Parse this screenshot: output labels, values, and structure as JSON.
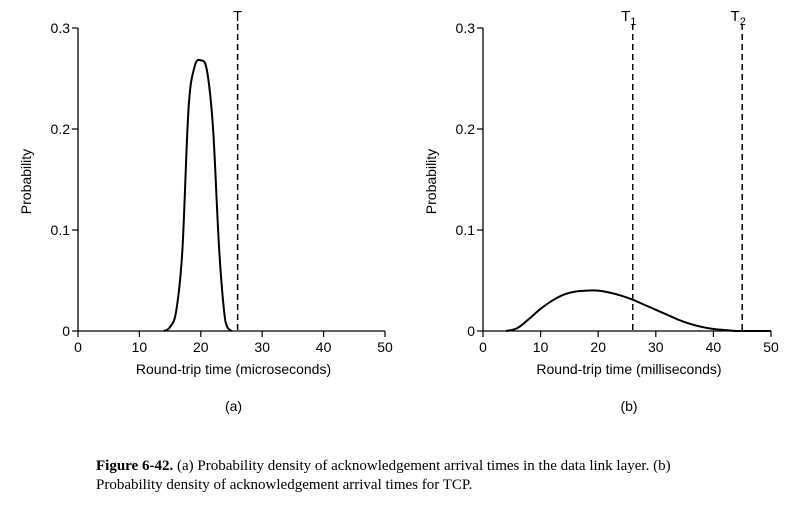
{
  "chart_data": [
    {
      "type": "line",
      "panel_label": "(a)",
      "xlabel": "Round-trip time (microseconds)",
      "ylabel": "Probability",
      "xlim": [
        0,
        50
      ],
      "ylim": [
        0,
        0.3
      ],
      "x_ticks": [
        "0",
        "10",
        "20",
        "30",
        "40",
        "50"
      ],
      "y_ticks": [
        "0",
        "0.1",
        "0.2",
        "0.3"
      ],
      "series": [
        {
          "x": [
            14,
            15,
            16,
            17,
            18,
            19,
            20,
            21,
            22,
            23,
            24,
            25
          ],
          "y": [
            0,
            0.004,
            0.02,
            0.08,
            0.22,
            0.262,
            0.268,
            0.258,
            0.2,
            0.08,
            0.01,
            0
          ]
        }
      ],
      "thresholds": [
        {
          "label": "T",
          "sub": "",
          "x": 26
        }
      ]
    },
    {
      "type": "line",
      "panel_label": "(b)",
      "xlabel": "Round-trip time (milliseconds)",
      "ylabel": "Probability",
      "xlim": [
        0,
        50
      ],
      "ylim": [
        0,
        0.3
      ],
      "x_ticks": [
        "0",
        "10",
        "20",
        "30",
        "40",
        "50"
      ],
      "y_ticks": [
        "0",
        "0.1",
        "0.2",
        "0.3"
      ],
      "series": [
        {
          "x": [
            4,
            6,
            8,
            10,
            12,
            14,
            16,
            18,
            20,
            22,
            24,
            26,
            28,
            30,
            32,
            34,
            36,
            38,
            40,
            42,
            44,
            46,
            48,
            50
          ],
          "y": [
            0,
            0.003,
            0.012,
            0.022,
            0.03,
            0.036,
            0.039,
            0.04,
            0.04,
            0.038,
            0.035,
            0.031,
            0.026,
            0.021,
            0.016,
            0.011,
            0.007,
            0.004,
            0.002,
            0.001,
            0,
            0,
            0,
            0
          ]
        }
      ],
      "thresholds": [
        {
          "label": "T",
          "sub": "1",
          "x": 26
        },
        {
          "label": "T",
          "sub": "2",
          "x": 45
        }
      ]
    }
  ],
  "caption": {
    "label": "Figure 6-42.",
    "text": " (a) Probability density of acknowledgement arrival times in the data link layer. (b) Probability density of acknowledgement arrival times for TCP."
  }
}
